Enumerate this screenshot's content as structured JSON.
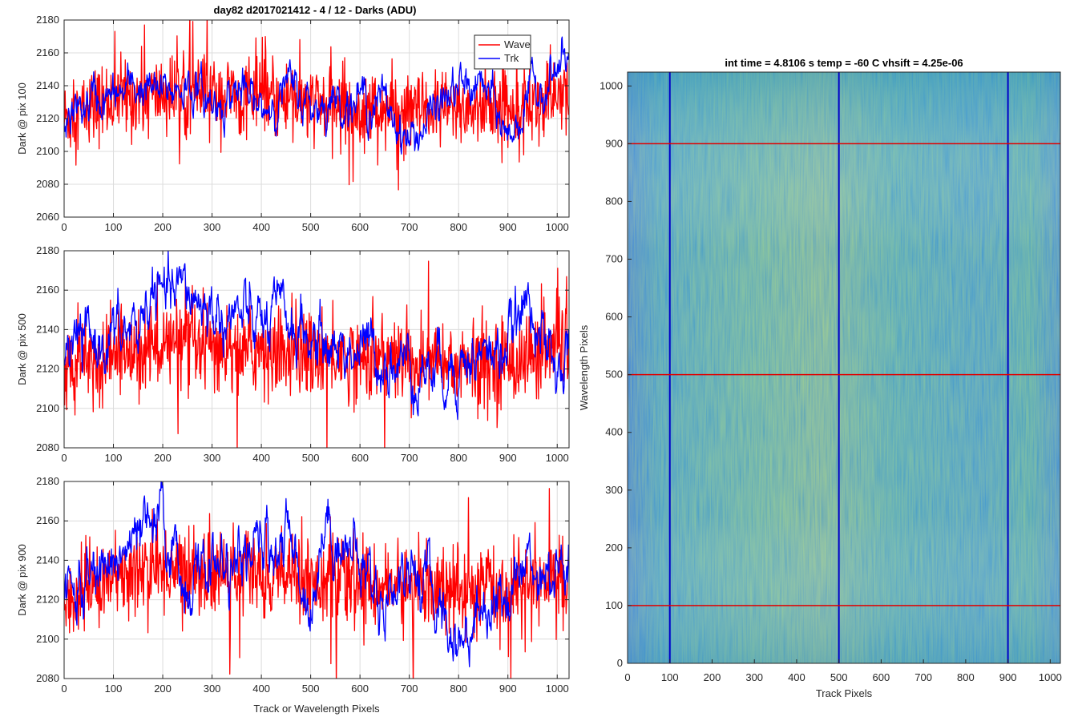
{
  "figure_title": "day82 d2017021412 - 4 / 12 - Darks (ADU)",
  "chart_data": [
    {
      "type": "line",
      "ylabel": "Dark @ pix 100",
      "xlabel": "",
      "xlim": [
        0,
        1024
      ],
      "ylim": [
        2060,
        2180
      ],
      "xticks": [
        0,
        100,
        200,
        300,
        400,
        500,
        600,
        700,
        800,
        900,
        1000
      ],
      "yticks": [
        2060,
        2080,
        2100,
        2120,
        2140,
        2160,
        2180
      ],
      "grid": true,
      "legend": "top-right",
      "series": [
        {
          "name": "Wave",
          "color": "#ff0000",
          "mean": 2130,
          "spread": 14,
          "trend": [
            [
              0,
              2120
            ],
            [
              100,
              2132
            ],
            [
              200,
              2135
            ],
            [
              300,
              2134
            ],
            [
              400,
              2133
            ],
            [
              500,
              2128
            ],
            [
              600,
              2126
            ],
            [
              700,
              2124
            ],
            [
              800,
              2126
            ],
            [
              900,
              2128
            ],
            [
              1024,
              2132
            ]
          ]
        },
        {
          "name": "Trk",
          "color": "#0000ff",
          "mean": 2132,
          "spread": 5,
          "trend": [
            [
              0,
              2118
            ],
            [
              30,
              2125
            ],
            [
              60,
              2132
            ],
            [
              100,
              2132
            ],
            [
              150,
              2140
            ],
            [
              200,
              2134
            ],
            [
              250,
              2142
            ],
            [
              300,
              2128
            ],
            [
              350,
              2138
            ],
            [
              400,
              2124
            ],
            [
              450,
              2140
            ],
            [
              500,
              2128
            ],
            [
              550,
              2132
            ],
            [
              600,
              2132
            ],
            [
              650,
              2130
            ],
            [
              700,
              2106
            ],
            [
              720,
              2112
            ],
            [
              760,
              2128
            ],
            [
              800,
              2138
            ],
            [
              850,
              2140
            ],
            [
              900,
              2108
            ],
            [
              950,
              2136
            ],
            [
              1000,
              2148
            ],
            [
              1024,
              2156
            ]
          ]
        }
      ]
    },
    {
      "type": "line",
      "ylabel": "Dark @ pix 500",
      "xlabel": "",
      "xlim": [
        0,
        1024
      ],
      "ylim": [
        2080,
        2180
      ],
      "xticks": [
        0,
        100,
        200,
        300,
        400,
        500,
        600,
        700,
        800,
        900,
        1000
      ],
      "yticks": [
        2080,
        2100,
        2120,
        2140,
        2160,
        2180
      ],
      "grid": true,
      "series": [
        {
          "name": "Wave",
          "color": "#ff0000",
          "mean": 2128,
          "spread": 13,
          "trend": [
            [
              0,
              2118
            ],
            [
              100,
              2128
            ],
            [
              200,
              2132
            ],
            [
              300,
              2130
            ],
            [
              400,
              2130
            ],
            [
              500,
              2128
            ],
            [
              600,
              2126
            ],
            [
              700,
              2124
            ],
            [
              800,
              2122
            ],
            [
              900,
              2124
            ],
            [
              1024,
              2130
            ]
          ]
        },
        {
          "name": "Trk",
          "color": "#0000ff",
          "mean": 2136,
          "spread": 6,
          "trend": [
            [
              0,
              2130
            ],
            [
              100,
              2136
            ],
            [
              150,
              2140
            ],
            [
              180,
              2160
            ],
            [
              200,
              2154
            ],
            [
              250,
              2160
            ],
            [
              300,
              2148
            ],
            [
              350,
              2146
            ],
            [
              400,
              2142
            ],
            [
              450,
              2146
            ],
            [
              500,
              2134
            ],
            [
              550,
              2132
            ],
            [
              600,
              2130
            ],
            [
              650,
              2126
            ],
            [
              700,
              2122
            ],
            [
              750,
              2120
            ],
            [
              800,
              2124
            ],
            [
              850,
              2126
            ],
            [
              900,
              2132
            ],
            [
              950,
              2158
            ],
            [
              980,
              2124
            ],
            [
              1000,
              2112
            ],
            [
              1024,
              2134
            ]
          ]
        }
      ]
    },
    {
      "type": "line",
      "ylabel": "Dark @ pix 900",
      "xlabel": "Track or Wavelength Pixels",
      "xlim": [
        0,
        1024
      ],
      "ylim": [
        2080,
        2180
      ],
      "xticks": [
        0,
        100,
        200,
        300,
        400,
        500,
        600,
        700,
        800,
        900,
        1000
      ],
      "yticks": [
        2080,
        2100,
        2120,
        2140,
        2160,
        2180
      ],
      "grid": true,
      "series": [
        {
          "name": "Wave",
          "color": "#ff0000",
          "mean": 2128,
          "spread": 13,
          "trend": [
            [
              0,
              2118
            ],
            [
              100,
              2132
            ],
            [
              200,
              2136
            ],
            [
              300,
              2134
            ],
            [
              400,
              2134
            ],
            [
              500,
              2130
            ],
            [
              600,
              2128
            ],
            [
              700,
              2126
            ],
            [
              800,
              2124
            ],
            [
              900,
              2126
            ],
            [
              1024,
              2132
            ]
          ]
        },
        {
          "name": "Trk",
          "color": "#0000ff",
          "mean": 2132,
          "spread": 6,
          "trend": [
            [
              0,
              2122
            ],
            [
              50,
              2128
            ],
            [
              100,
              2140
            ],
            [
              150,
              2148
            ],
            [
              200,
              2158
            ],
            [
              250,
              2126
            ],
            [
              300,
              2140
            ],
            [
              350,
              2134
            ],
            [
              400,
              2146
            ],
            [
              450,
              2152
            ],
            [
              500,
              2118
            ],
            [
              530,
              2160
            ],
            [
              600,
              2138
            ],
            [
              650,
              2120
            ],
            [
              700,
              2138
            ],
            [
              750,
              2122
            ],
            [
              800,
              2098
            ],
            [
              850,
              2118
            ],
            [
              900,
              2124
            ],
            [
              950,
              2142
            ],
            [
              1000,
              2134
            ],
            [
              1024,
              2136
            ]
          ]
        }
      ]
    },
    {
      "type": "heatmap",
      "title": "int time = 4.8106 s   temp = -60 C   vhsift = 4.25e-06",
      "xlabel": "Track Pixels",
      "ylabel": "Wavelength Pixels",
      "xlim": [
        0,
        1024
      ],
      "ylim": [
        0,
        1024
      ],
      "xticks": [
        0,
        100,
        200,
        300,
        400,
        500,
        600,
        700,
        800,
        900,
        1000
      ],
      "yticks": [
        0,
        100,
        200,
        300,
        400,
        500,
        600,
        700,
        800,
        900,
        1000
      ],
      "colormap": [
        "#1e6ec8",
        "#1fa2b8",
        "#3cbc86",
        "#b8c24a"
      ],
      "vertical_lines": {
        "color": "#0000c8",
        "x": [
          100,
          500,
          900
        ]
      },
      "horizontal_lines": {
        "color": "#e00000",
        "y": [
          100,
          500,
          900
        ]
      }
    }
  ]
}
